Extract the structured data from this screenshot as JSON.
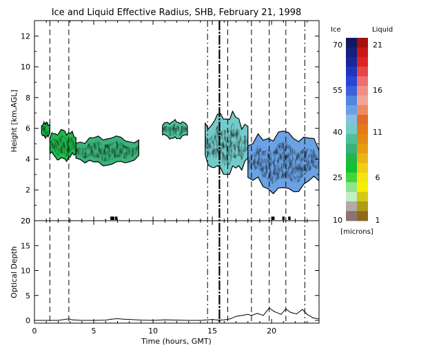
{
  "chart_data": [
    {
      "type": "heatmap",
      "title": "Ice and Liquid Effective Radius, SHB, February 21, 1998",
      "ylabel": "Height [km,AGL]",
      "xlim": [
        0,
        24
      ],
      "ylim": [
        0,
        13
      ],
      "yticks": [
        "0",
        "2",
        "4",
        "6",
        "8",
        "10",
        "12"
      ],
      "grid": false,
      "vertical_markers": {
        "dashed": [
          1.3,
          2.9,
          16.3,
          18.3,
          19.8,
          21.2
        ],
        "dash_dot": [
          14.6,
          22.8
        ],
        "solid": [
          15.6
        ]
      },
      "cloud_regions": [
        {
          "x_start": 0.6,
          "x_end": 1.3,
          "bottom": 5.4,
          "top": 6.4,
          "phase": "ice",
          "radius_range_microns": [
            30,
            40
          ]
        },
        {
          "x_start": 1.3,
          "x_end": 3.5,
          "bottom": 3.9,
          "top": 5.9,
          "phase": "ice",
          "radius_range_microns": [
            30,
            40
          ]
        },
        {
          "x_start": 3.5,
          "x_end": 8.8,
          "bottom": 3.6,
          "top": 5.5,
          "phase": "ice",
          "radius_range_microns": [
            30,
            45
          ]
        },
        {
          "x_start": 10.8,
          "x_end": 12.9,
          "bottom": 5.3,
          "top": 6.5,
          "phase": "ice",
          "radius_range_microns": [
            35,
            45
          ]
        },
        {
          "x_start": 14.4,
          "x_end": 18.0,
          "bottom": 3.0,
          "top": 7.0,
          "phase": "ice",
          "radius_range_microns": [
            30,
            55
          ]
        },
        {
          "x_start": 18.0,
          "x_end": 24.0,
          "bottom": 1.8,
          "top": 5.8,
          "phase": "ice",
          "radius_range_microns": [
            35,
            65
          ]
        }
      ]
    },
    {
      "type": "line",
      "ylabel": "Optical Depth",
      "xlabel": "Time (hours, GMT)",
      "xlim": [
        0,
        24
      ],
      "ylim": [
        0,
        20
      ],
      "xticks": [
        "0",
        "5",
        "10",
        "15",
        "20"
      ],
      "yticks": [
        "0",
        "5",
        "10",
        "15",
        "20"
      ],
      "x": [
        0,
        1,
        2,
        2.9,
        3.2,
        4,
        5,
        6,
        6.5,
        7,
        7.5,
        8,
        9,
        10,
        11,
        12,
        13,
        14,
        14.6,
        15,
        15.5,
        16,
        16.5,
        17,
        17.5,
        18,
        18.3,
        18.8,
        19.3,
        19.8,
        20.2,
        20.8,
        21.2,
        21.6,
        22.1,
        22.6,
        23,
        23.5,
        24
      ],
      "y": [
        0,
        0,
        0,
        0.3,
        0.1,
        0,
        0,
        0.05,
        0.25,
        0.35,
        0.25,
        0.2,
        0.05,
        0,
        0.1,
        0.05,
        0,
        0,
        0.1,
        0.2,
        0.05,
        0.1,
        0.3,
        0.8,
        1.0,
        1.2,
        1.0,
        1.4,
        1.0,
        2.5,
        1.8,
        1.2,
        2.3,
        1.6,
        1.3,
        2.2,
        1.2,
        0.5,
        0.3
      ]
    }
  ],
  "colorbar": {
    "ice_header": "Ice",
    "liquid_header": "Liquid",
    "ice_labels": [
      "70",
      "55",
      "40",
      "25",
      "10"
    ],
    "liquid_labels": [
      "21",
      "16",
      "11",
      "6",
      "1"
    ],
    "units": "[microns]",
    "ice_colors": [
      "#111860",
      "#14207a",
      "#18289a",
      "#1e36bc",
      "#2846d2",
      "#3a62d8",
      "#4f86e0",
      "#6aa2e4",
      "#86bee6",
      "#72cbc8",
      "#4ec19a",
      "#3ab27a",
      "#20b84c",
      "#12c230",
      "#46d23e",
      "#8ee38e",
      "#c2eec2",
      "#b0aca6",
      "#8c7472"
    ],
    "liquid_colors": [
      "#a80e0e",
      "#c81818",
      "#dc2424",
      "#e64646",
      "#ee6e6e",
      "#f28e86",
      "#f4a496",
      "#ec8c60",
      "#e46a2a",
      "#e47a18",
      "#e48a12",
      "#e89c10",
      "#eab416",
      "#f0ce16",
      "#f4e410",
      "#f6f000",
      "#d4ca14",
      "#b09a1a",
      "#8c6a1c"
    ]
  }
}
